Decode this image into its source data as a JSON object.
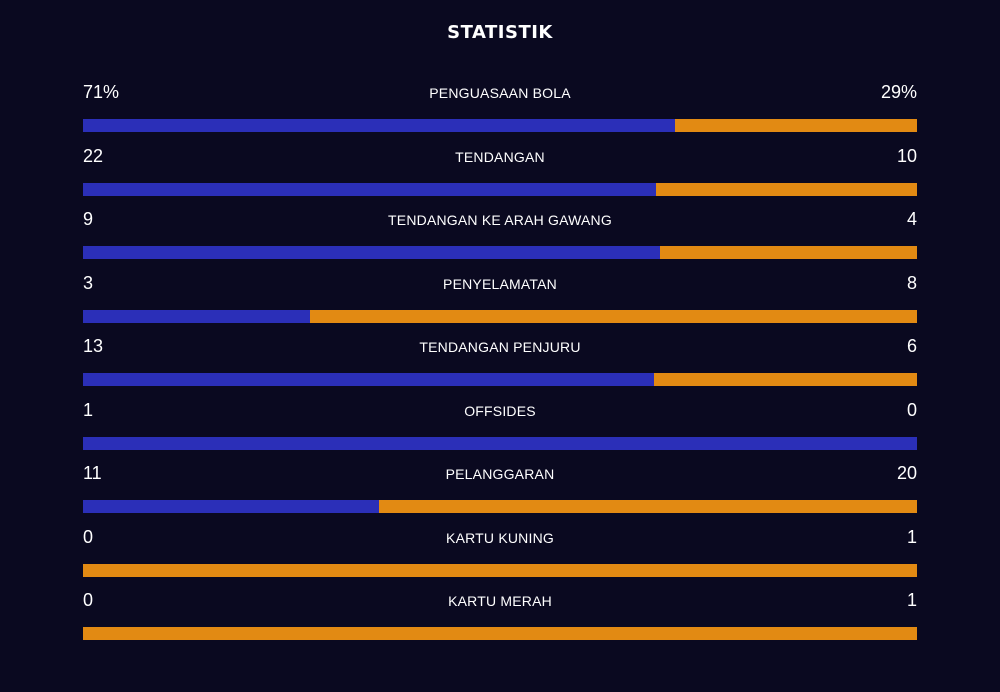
{
  "title": "STATISTIK",
  "colors": {
    "background": "#0a0920",
    "home_bar": "#2b2fb8",
    "away_bar": "#e28a13"
  },
  "stats": [
    {
      "label": "PENGUASAAN BOLA",
      "home": "71%",
      "away": "29%",
      "home_share": 0.71
    },
    {
      "label": "TENDANGAN",
      "home": "22",
      "away": "10",
      "home_share": 0.6875
    },
    {
      "label": "TENDANGAN KE ARAH GAWANG",
      "home": "9",
      "away": "4",
      "home_share": 0.6923
    },
    {
      "label": "PENYELAMATAN",
      "home": "3",
      "away": "8",
      "home_share": 0.2727
    },
    {
      "label": "TENDANGAN PENJURU",
      "home": "13",
      "away": "6",
      "home_share": 0.6842
    },
    {
      "label": "OFFSIDES",
      "home": "1",
      "away": "0",
      "home_share": 1.0
    },
    {
      "label": "PELANGGARAN",
      "home": "11",
      "away": "20",
      "home_share": 0.3548
    },
    {
      "label": "KARTU KUNING",
      "home": "0",
      "away": "1",
      "home_share": 0.0
    },
    {
      "label": "KARTU MERAH",
      "home": "0",
      "away": "1",
      "home_share": 0.0
    }
  ]
}
